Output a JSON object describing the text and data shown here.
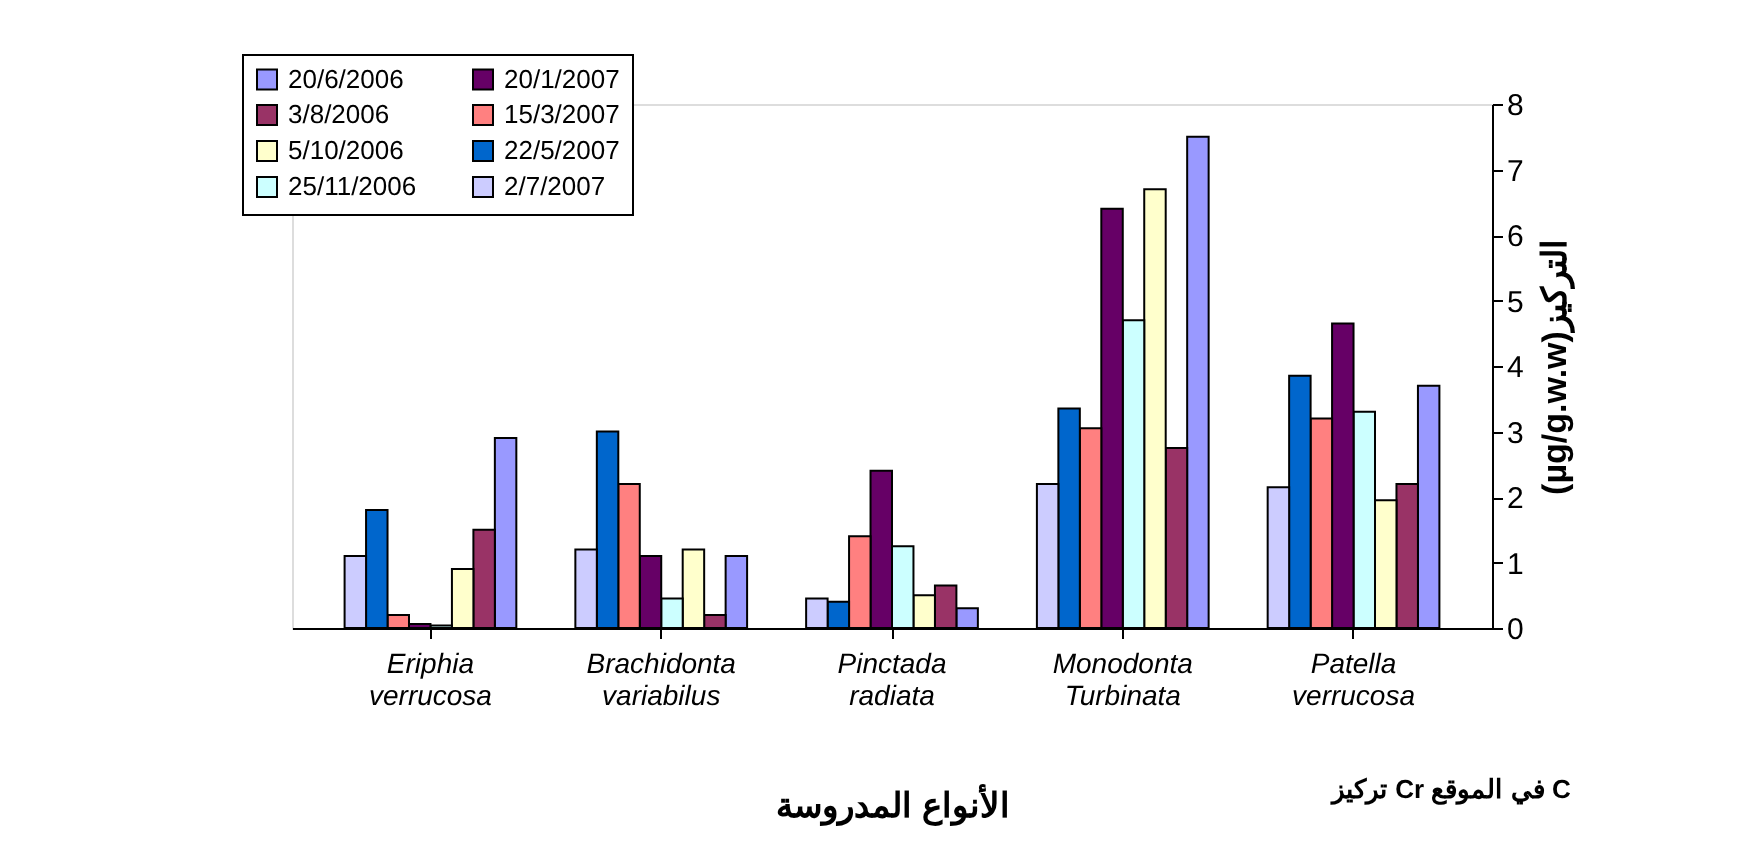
{
  "chart_data": {
    "type": "bar",
    "title": "تركيز Cr في الموقع C",
    "xlabel": "الأنواع المدروسة",
    "ylabel": "(µg/g.w.w)التركيز",
    "categories": [
      "Eriphia verrucosa",
      "Brachidonta variabilus",
      "Pinctada radiata",
      "Monodonta Turbinata",
      "Patella verrucosa"
    ],
    "series": [
      {
        "name": "20/6/2006",
        "color": "#9999ff",
        "values": [
          2.9,
          1.1,
          0.3,
          7.5,
          3.7
        ]
      },
      {
        "name": "3/8/2006",
        "color": "#993366",
        "values": [
          1.5,
          0.2,
          0.65,
          2.75,
          2.2
        ]
      },
      {
        "name": "5/10/2006",
        "color": "#ffffcc",
        "values": [
          0.9,
          1.2,
          0.5,
          6.7,
          1.95
        ]
      },
      {
        "name": "25/11/2006",
        "color": "#ccffff",
        "values": [
          0.04,
          0.45,
          1.25,
          4.7,
          3.3
        ]
      },
      {
        "name": "20/1/2007",
        "color": "#660066",
        "values": [
          0.06,
          1.1,
          2.4,
          6.4,
          4.65
        ]
      },
      {
        "name": "15/3/2007",
        "color": "#ff8080",
        "values": [
          0.2,
          2.2,
          1.4,
          3.05,
          3.2
        ]
      },
      {
        "name": "22/5/2007",
        "color": "#0066cc",
        "values": [
          1.8,
          3.0,
          0.4,
          3.35,
          3.85
        ]
      },
      {
        "name": "2/7/2007",
        "color": "#ccccff",
        "values": [
          1.1,
          1.2,
          0.45,
          2.2,
          2.15
        ]
      }
    ],
    "ylim": [
      0,
      8
    ],
    "yticks": [
      0,
      1,
      2,
      3,
      4,
      5,
      6,
      7,
      8
    ],
    "grid": false,
    "legend": "top left"
  }
}
